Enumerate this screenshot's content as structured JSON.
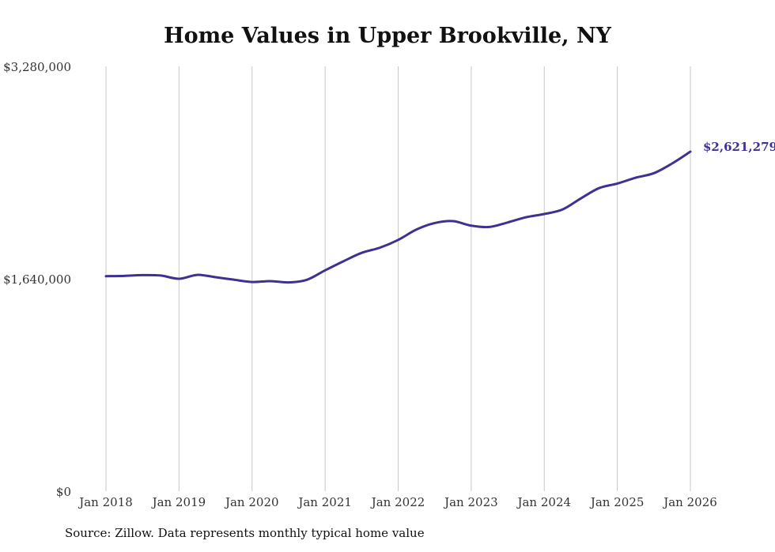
{
  "colors": {
    "line": "#3d3291",
    "grid": "#c8c8c8",
    "text": "#333333"
  },
  "chart_data": {
    "type": "line",
    "title": "Home Values in Upper Brookville, NY",
    "xlabel": "",
    "ylabel": "",
    "ylim": [
      0,
      3280000
    ],
    "yticks": [
      0,
      1640000,
      3280000
    ],
    "ytick_labels": [
      "$0",
      "$1,640,000",
      "$3,280,000"
    ],
    "xlim": [
      2018,
      2026
    ],
    "xticks": [
      2018,
      2019,
      2020,
      2021,
      2022,
      2023,
      2024,
      2025,
      2026
    ],
    "xtick_labels": [
      "Jan 2018",
      "Jan 2019",
      "Jan 2020",
      "Jan 2021",
      "Jan 2022",
      "Jan 2023",
      "Jan 2024",
      "Jan 2025",
      "Jan 2026"
    ],
    "end_label": "$2,621,279",
    "series": [
      {
        "name": "Typical home value",
        "x": [
          2018.0,
          2018.25,
          2018.5,
          2018.75,
          2019.0,
          2019.25,
          2019.5,
          2019.75,
          2020.0,
          2020.25,
          2020.5,
          2020.75,
          2021.0,
          2021.25,
          2021.5,
          2021.75,
          2022.0,
          2022.25,
          2022.5,
          2022.75,
          2023.0,
          2023.25,
          2023.5,
          2023.75,
          2024.0,
          2024.25,
          2024.5,
          2024.75,
          2025.0,
          2025.25,
          2025.5,
          2025.75,
          2026.0
        ],
        "values": [
          1660000,
          1662000,
          1668000,
          1665000,
          1640000,
          1670000,
          1652000,
          1633000,
          1615000,
          1622000,
          1612000,
          1632000,
          1705000,
          1775000,
          1840000,
          1880000,
          1940000,
          2020000,
          2070000,
          2085000,
          2050000,
          2040000,
          2075000,
          2115000,
          2140000,
          2175000,
          2260000,
          2340000,
          2375000,
          2420000,
          2455000,
          2530000,
          2621279
        ]
      }
    ]
  },
  "footer": {
    "source": "Source: Zillow. Data represents monthly typical home value"
  }
}
